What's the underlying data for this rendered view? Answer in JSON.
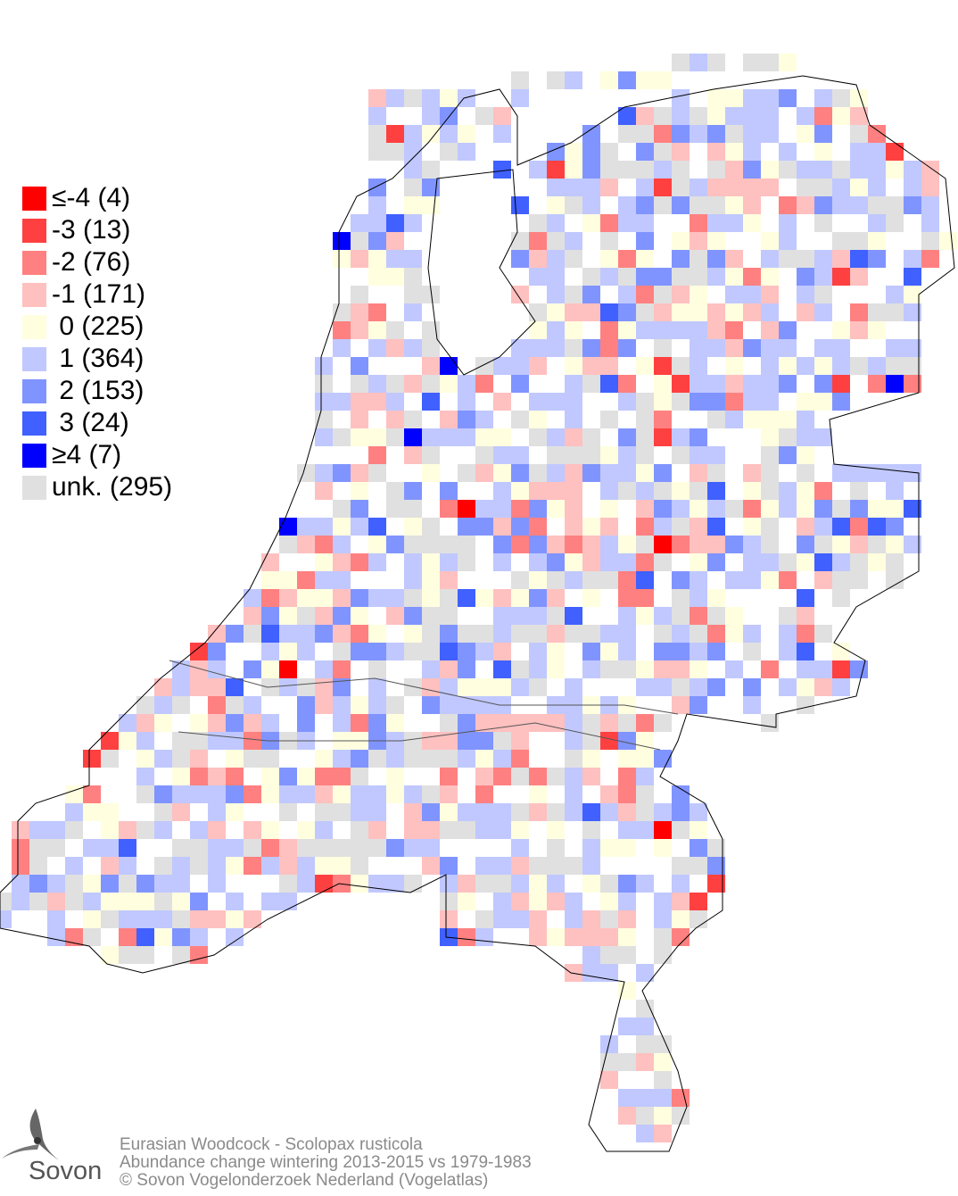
{
  "legend": [
    {
      "label": "≤-4 (4)",
      "color": "#ff0000",
      "value": -4,
      "count": 4
    },
    {
      "label": "-3 (13)",
      "color": "#ff4040",
      "value": -3,
      "count": 13
    },
    {
      "label": "-2 (76)",
      "color": "#ff8080",
      "value": -2,
      "count": 76
    },
    {
      "label": "-1 (171)",
      "color": "#ffc0c0",
      "value": -1,
      "count": 171
    },
    {
      "label": " 0 (225)",
      "color": "#ffffe0",
      "value": 0,
      "count": 225
    },
    {
      "label": " 1 (364)",
      "color": "#c0c8ff",
      "value": 1,
      "count": 364
    },
    {
      "label": " 2 (153)",
      "color": "#8094ff",
      "value": 2,
      "count": 153
    },
    {
      "label": " 3 (24)",
      "color": "#4060ff",
      "value": 3,
      "count": 24
    },
    {
      "label": "≥4 (7)",
      "color": "#0000ff",
      "value": 4,
      "count": 7
    },
    {
      "label": "unk. (295)",
      "color": "#e0e0e0",
      "value": null,
      "count": 295
    }
  ],
  "footer": {
    "line1": "Eurasian Woodcock - Scolopax rusticola",
    "line2": "Abundance change wintering  2013-2015 vs 1979-1983",
    "line3": "© Sovon Vogelonderzoek Nederland (Vogelatlas)"
  },
  "logo": {
    "text": "Sovon"
  }
}
